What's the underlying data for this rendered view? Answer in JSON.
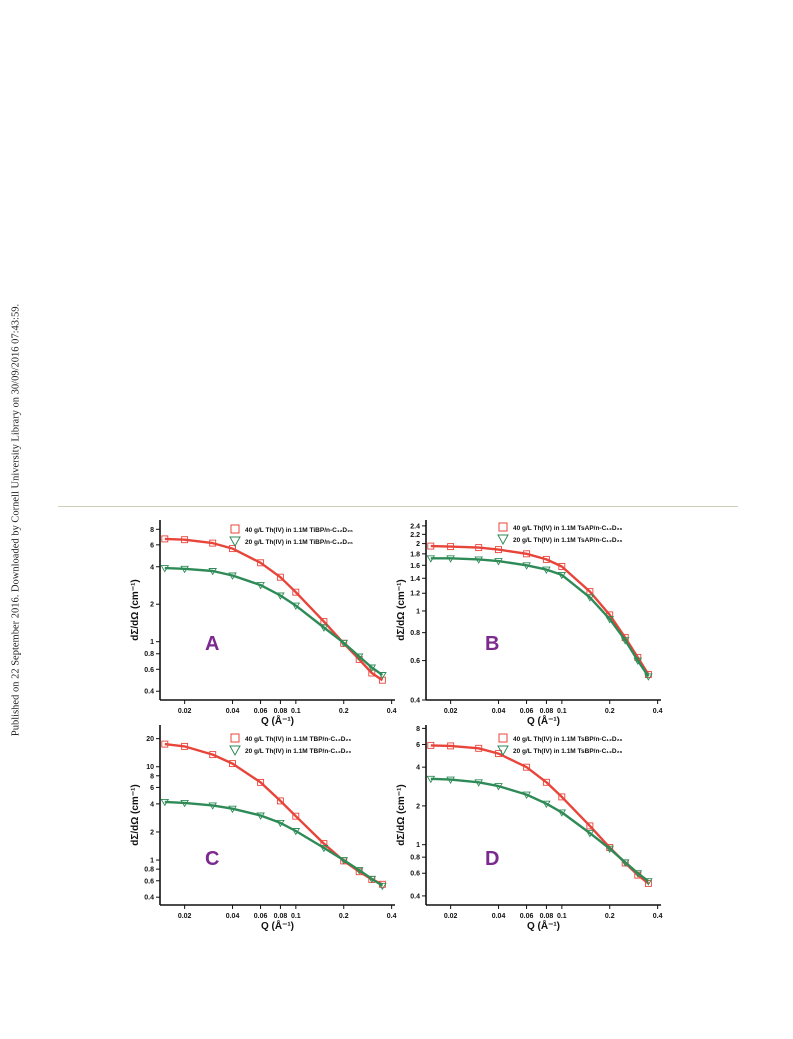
{
  "publication_note": "Published on 22 September 2016. Downloaded by Cornell University Library on 30/09/2016 07:43:59.",
  "colors": {
    "red": "#e8443a",
    "green": "#2e8b57",
    "panel_letter": "#7b2a8f"
  },
  "chart_data": [
    {
      "type": "scatter",
      "panel": "A",
      "xscale": "log",
      "yscale": "log",
      "xlabel": "Q (Å⁻¹)",
      "ylabel": "dΣ/dΩ (cm⁻¹)",
      "xlim": [
        0.014,
        0.42
      ],
      "ylim": [
        0.34,
        9.5
      ],
      "xticks": [
        0.02,
        0.04,
        0.06,
        0.08,
        0.1,
        0.2,
        0.4
      ],
      "xtick_labels": [
        "0.02",
        "0.04",
        "0.06",
        "0.08",
        "0.1",
        "0.2",
        "0.4"
      ],
      "yticks": [
        0.4,
        0.6,
        0.8,
        1,
        2,
        4,
        6,
        8
      ],
      "ytick_labels": [
        "0.4",
        "0.6",
        "0.8",
        "1",
        "2",
        "4",
        "6",
        "8"
      ],
      "series": [
        {
          "name": "40 g/L Th(IV) in 1.1M TiBP/n-C₁₂D₂₆",
          "marker": "square",
          "color": "#e8443a",
          "x": [
            0.015,
            0.02,
            0.03,
            0.04,
            0.06,
            0.08,
            0.1,
            0.15,
            0.2,
            0.25,
            0.3,
            0.35
          ],
          "y": [
            6.7,
            6.6,
            6.2,
            5.6,
            4.3,
            3.3,
            2.5,
            1.45,
            0.97,
            0.72,
            0.56,
            0.49
          ]
        },
        {
          "name": "20 g/L Th(IV) in 1.1M TiBP/n-C₁₂D₂₆",
          "marker": "triangle-down",
          "color": "#2e8b57",
          "x": [
            0.015,
            0.02,
            0.03,
            0.04,
            0.06,
            0.08,
            0.1,
            0.15,
            0.2,
            0.25,
            0.3,
            0.35
          ],
          "y": [
            3.9,
            3.85,
            3.7,
            3.4,
            2.85,
            2.35,
            1.95,
            1.3,
            0.98,
            0.76,
            0.62,
            0.54
          ]
        }
      ]
    },
    {
      "type": "scatter",
      "panel": "B",
      "xscale": "log",
      "yscale": "log",
      "xlabel": "Q (Å⁻¹)",
      "ylabel": "dΣ/dΩ (cm⁻¹)",
      "xlim": [
        0.014,
        0.42
      ],
      "ylim": [
        0.4,
        2.55
      ],
      "xticks": [
        0.02,
        0.04,
        0.06,
        0.08,
        0.1,
        0.2,
        0.4
      ],
      "xtick_labels": [
        "0.02",
        "0.04",
        "0.06",
        "0.08",
        "0.1",
        "0.2",
        "0.4"
      ],
      "yticks": [
        0.4,
        0.6,
        0.8,
        1,
        1.2,
        1.4,
        1.6,
        1.8,
        2,
        2.2,
        2.4
      ],
      "ytick_labels": [
        "0.4",
        "0.6",
        "0.8",
        "1",
        "1.2",
        "1.4",
        "1.6",
        "1.8",
        "2",
        "2.2",
        "2.4"
      ],
      "series": [
        {
          "name": "40 g/L Th(IV) in 1.1M TsAP/n-C₁₂D₂₆",
          "marker": "square",
          "color": "#e8443a",
          "x": [
            0.015,
            0.02,
            0.03,
            0.04,
            0.06,
            0.08,
            0.1,
            0.15,
            0.2,
            0.25,
            0.3,
            0.35
          ],
          "y": [
            1.95,
            1.94,
            1.92,
            1.88,
            1.8,
            1.7,
            1.58,
            1.22,
            0.96,
            0.76,
            0.62,
            0.52
          ]
        },
        {
          "name": "20 g/L Th(IV) in 1.1M TsAP/n-C₁₂D₂₆",
          "marker": "triangle-down",
          "color": "#2e8b57",
          "x": [
            0.015,
            0.02,
            0.03,
            0.04,
            0.06,
            0.08,
            0.1,
            0.15,
            0.2,
            0.25,
            0.3,
            0.35
          ],
          "y": [
            1.72,
            1.72,
            1.7,
            1.67,
            1.6,
            1.53,
            1.45,
            1.15,
            0.92,
            0.74,
            0.6,
            0.51
          ]
        }
      ]
    },
    {
      "type": "scatter",
      "panel": "C",
      "xscale": "log",
      "yscale": "log",
      "xlabel": "Q (Å⁻¹)",
      "ylabel": "dΣ/dΩ (cm⁻¹)",
      "xlim": [
        0.014,
        0.42
      ],
      "ylim": [
        0.33,
        28
      ],
      "xticks": [
        0.02,
        0.04,
        0.06,
        0.08,
        0.1,
        0.2,
        0.4
      ],
      "xtick_labels": [
        "0.02",
        "0.04",
        "0.06",
        "0.08",
        "0.1",
        "0.2",
        "0.4"
      ],
      "yticks": [
        0.4,
        0.6,
        0.8,
        1,
        2,
        4,
        6,
        8,
        10,
        20
      ],
      "ytick_labels": [
        "0.4",
        "0.6",
        "0.8",
        "1",
        "2",
        "4",
        "6",
        "8",
        "10",
        "20"
      ],
      "series": [
        {
          "name": "40 g/L Th(IV) in 1.1M TBP/n-C₁₂D₂₆",
          "marker": "square",
          "color": "#e8443a",
          "x": [
            0.015,
            0.02,
            0.03,
            0.04,
            0.06,
            0.08,
            0.1,
            0.15,
            0.2,
            0.25,
            0.3,
            0.35
          ],
          "y": [
            17.5,
            16.5,
            13.5,
            10.8,
            6.8,
            4.3,
            2.95,
            1.5,
            0.98,
            0.75,
            0.62,
            0.55
          ]
        },
        {
          "name": "20 g/L Th(IV) in 1.1M TBP/n-C₁₂D₂₆",
          "marker": "triangle-down",
          "color": "#2e8b57",
          "x": [
            0.015,
            0.02,
            0.03,
            0.04,
            0.06,
            0.08,
            0.1,
            0.15,
            0.2,
            0.25,
            0.3,
            0.35
          ],
          "y": [
            4.2,
            4.1,
            3.85,
            3.55,
            3.0,
            2.5,
            2.05,
            1.35,
            1.0,
            0.78,
            0.63,
            0.53
          ]
        }
      ]
    },
    {
      "type": "scatter",
      "panel": "D",
      "xscale": "log",
      "yscale": "log",
      "xlabel": "Q (Å⁻¹)",
      "ylabel": "dΣ/dΩ (cm⁻¹)",
      "xlim": [
        0.014,
        0.42
      ],
      "ylim": [
        0.34,
        8.5
      ],
      "xticks": [
        0.02,
        0.04,
        0.06,
        0.08,
        0.1,
        0.2,
        0.4
      ],
      "xtick_labels": [
        "0.02",
        "0.04",
        "0.06",
        "0.08",
        "0.1",
        "0.2",
        "0.4"
      ],
      "yticks": [
        0.4,
        0.6,
        0.8,
        1,
        2,
        4,
        6,
        8
      ],
      "ytick_labels": [
        "0.4",
        "0.6",
        "0.8",
        "1",
        "2",
        "4",
        "6",
        "8"
      ],
      "series": [
        {
          "name": "40 g/L Th(IV) in 1.1M TsBP/n-C₁₂D₂₆",
          "marker": "square",
          "color": "#e8443a",
          "x": [
            0.015,
            0.02,
            0.03,
            0.04,
            0.06,
            0.08,
            0.1,
            0.15,
            0.2,
            0.25,
            0.3,
            0.35
          ],
          "y": [
            5.9,
            5.85,
            5.6,
            5.1,
            4.0,
            3.05,
            2.35,
            1.4,
            0.95,
            0.72,
            0.58,
            0.5
          ]
        },
        {
          "name": "20 g/L Th(IV) in 1.1M TsBP/n-C₁₂D₂₆",
          "marker": "triangle-down",
          "color": "#2e8b57",
          "x": [
            0.015,
            0.02,
            0.03,
            0.04,
            0.06,
            0.08,
            0.1,
            0.15,
            0.2,
            0.25,
            0.3,
            0.35
          ],
          "y": [
            3.25,
            3.2,
            3.05,
            2.85,
            2.45,
            2.08,
            1.78,
            1.23,
            0.93,
            0.73,
            0.6,
            0.52
          ]
        }
      ]
    }
  ]
}
